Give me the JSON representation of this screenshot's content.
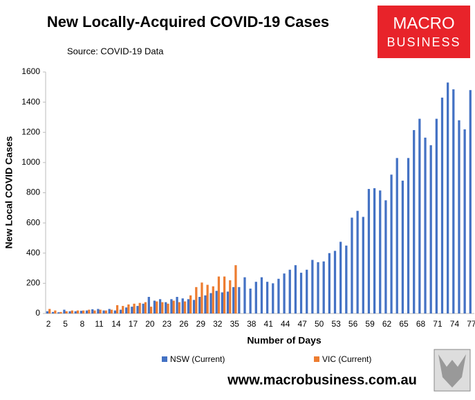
{
  "chart_data": {
    "type": "bar",
    "title": "New Locally-Acquired COVID-19 Cases",
    "subtitle": "Source: COVID-19 Data",
    "logo": [
      "MACRO",
      "BUSINESS"
    ],
    "footer": "www.macrobusiness.com.au",
    "x_label": "Number of Days",
    "y_label": "New Local COVID Cases",
    "categories": [
      2,
      null,
      null,
      5,
      null,
      null,
      8,
      null,
      null,
      11,
      null,
      null,
      14,
      null,
      null,
      17,
      null,
      null,
      20,
      null,
      null,
      23,
      null,
      null,
      26,
      null,
      null,
      29,
      null,
      null,
      32,
      null,
      null,
      35,
      null,
      null,
      38,
      null,
      null,
      41,
      null,
      null,
      44,
      null,
      null,
      47,
      null,
      null,
      50,
      null,
      null,
      53,
      null,
      null,
      56,
      null,
      null,
      59,
      null,
      null,
      62,
      null,
      null,
      65,
      null,
      null,
      68,
      null,
      null,
      71,
      null,
      null,
      74,
      null,
      null,
      77
    ],
    "series": [
      {
        "name": "NSW (Current)",
        "color": "#4472c4",
        "values": [
          15,
          10,
          8,
          25,
          15,
          15,
          18,
          20,
          28,
          30,
          20,
          30,
          20,
          25,
          40,
          45,
          50,
          65,
          110,
          85,
          95,
          75,
          95,
          110,
          100,
          95,
          90,
          110,
          120,
          135,
          150,
          140,
          145,
          175,
          175,
          240,
          165,
          210,
          240,
          210,
          200,
          230,
          265,
          290,
          320,
          270,
          290,
          355,
          340,
          345,
          400,
          415,
          475,
          450,
          635,
          680,
          640,
          825,
          830,
          815,
          750,
          920,
          1030,
          880,
          1030,
          1215,
          1290,
          1165,
          1115,
          1290,
          1430,
          1530,
          1485,
          1280,
          1220,
          1480
        ]
      },
      {
        "name": "VIC (Current)",
        "color": "#ed7d31",
        "values": [
          30,
          20,
          10,
          15,
          20,
          20,
          20,
          25,
          20,
          25,
          20,
          25,
          55,
          50,
          60,
          65,
          70,
          75,
          45,
          80,
          75,
          65,
          85,
          75,
          80,
          120,
          175,
          205,
          190,
          180,
          245,
          245,
          220,
          320,
          null,
          null,
          null,
          null,
          null,
          null,
          null,
          null,
          null,
          null,
          null,
          null,
          null,
          null,
          null,
          null,
          null,
          null,
          null,
          null,
          null,
          null,
          null,
          null,
          null,
          null,
          null,
          null,
          null,
          null,
          null,
          null,
          null,
          null,
          null,
          null,
          null,
          null,
          null,
          null,
          null,
          null
        ]
      }
    ],
    "ylim": [
      0,
      1600
    ],
    "yticks": [
      0,
      200,
      400,
      600,
      800,
      1000,
      1200,
      1400,
      1600
    ],
    "grid": false,
    "legend": "bottom"
  }
}
